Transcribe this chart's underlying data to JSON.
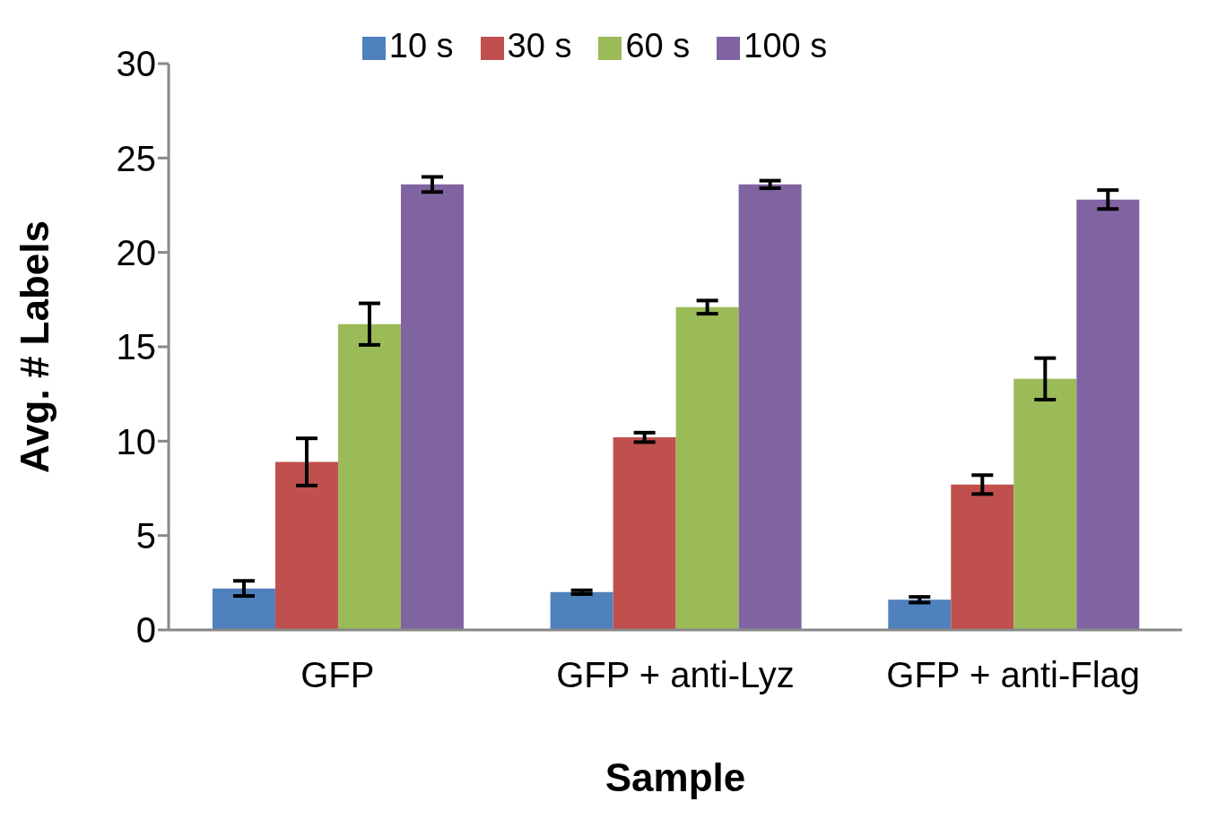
{
  "chart_data": {
    "type": "bar",
    "xlabel": "Sample",
    "ylabel": "Avg. # Labels",
    "categories": [
      "GFP",
      "GFP + anti-Lyz",
      "GFP + anti-Flag"
    ],
    "series": [
      {
        "name": "10 s",
        "color": "#4f81bd",
        "values": [
          2.2,
          2.0,
          1.6
        ],
        "errors": [
          0.4,
          0.1,
          0.15
        ]
      },
      {
        "name": "30 s",
        "color": "#c0504d",
        "values": [
          8.9,
          10.2,
          7.7
        ],
        "errors": [
          1.25,
          0.25,
          0.5
        ]
      },
      {
        "name": "60 s",
        "color": "#9bbb59",
        "values": [
          16.2,
          17.1,
          13.3
        ],
        "errors": [
          1.1,
          0.35,
          1.1
        ]
      },
      {
        "name": "100 s",
        "color": "#8064a2",
        "values": [
          23.6,
          23.6,
          22.8
        ],
        "errors": [
          0.4,
          0.2,
          0.5
        ]
      }
    ],
    "ylim": [
      0,
      30
    ],
    "yticks": [
      0,
      5,
      10,
      15,
      20,
      25,
      30
    ],
    "grid": false,
    "legend": "top"
  }
}
